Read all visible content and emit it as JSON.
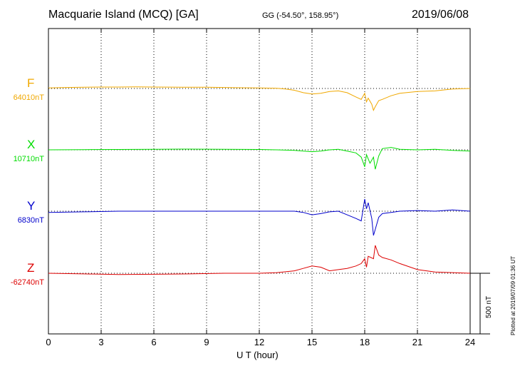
{
  "header": {
    "title": "Macquarie Island (MCQ)  [GA]",
    "coords": "GG (-54.50°, 158.95°)",
    "date": "2019/06/08"
  },
  "footer": {
    "plotted": "Plotted at 2019/07/09 01:36 UT"
  },
  "colors": {
    "F": "#f0a800",
    "X": "#00dd00",
    "Y": "#0000cc",
    "Z": "#dd0000"
  },
  "chart_data": {
    "type": "line",
    "xlabel": "U T (hour)",
    "xlim": [
      0,
      24
    ],
    "xticks": [
      "0",
      "3",
      "6",
      "9",
      "12",
      "15",
      "18",
      "21",
      "24"
    ],
    "scale_bar": "500 nT",
    "series": [
      {
        "name": "F",
        "baseline": "64010nT",
        "x": [
          0,
          1,
          2,
          3,
          4,
          5,
          6,
          7,
          8,
          9,
          10,
          11,
          12,
          13,
          13.5,
          14,
          14.5,
          15,
          15.5,
          16,
          16.5,
          17,
          17.5,
          17.8,
          18,
          18.1,
          18.2,
          18.4,
          18.5,
          18.6,
          18.8,
          19,
          19.5,
          20,
          21,
          22,
          23,
          24
        ],
        "values": [
          5,
          8,
          10,
          12,
          12,
          13,
          12,
          11,
          10,
          10,
          8,
          6,
          5,
          2,
          -5,
          -15,
          -35,
          -45,
          -40,
          -25,
          -20,
          -35,
          -70,
          -90,
          -40,
          -110,
          -80,
          -130,
          -180,
          -150,
          -100,
          -90,
          -60,
          -40,
          -25,
          -20,
          -5,
          0
        ]
      },
      {
        "name": "X",
        "baseline": "10710nT",
        "x": [
          0,
          2,
          4,
          6,
          8,
          10,
          12,
          13,
          14,
          14.5,
          15,
          15.5,
          16,
          16.5,
          17,
          17.5,
          17.8,
          18,
          18.1,
          18.3,
          18.5,
          18.6,
          18.8,
          19,
          19.5,
          20,
          21,
          22,
          23,
          24
        ],
        "values": [
          0,
          2,
          3,
          5,
          6,
          4,
          3,
          0,
          -5,
          -10,
          -15,
          -10,
          0,
          5,
          -10,
          -25,
          -60,
          -140,
          -40,
          -110,
          -60,
          -160,
          -50,
          10,
          20,
          5,
          0,
          5,
          -5,
          -10
        ]
      },
      {
        "name": "Y",
        "baseline": "6830nT",
        "x": [
          0,
          2,
          4,
          6,
          8,
          10,
          12,
          13,
          14,
          14.5,
          15,
          15.5,
          16,
          16.5,
          17,
          17.5,
          17.8,
          18,
          18.1,
          18.2,
          18.4,
          18.5,
          18.6,
          18.8,
          19,
          19.5,
          20,
          21,
          22,
          23,
          24
        ],
        "values": [
          -10,
          -5,
          0,
          0,
          0,
          0,
          0,
          0,
          0,
          -10,
          -30,
          -20,
          -5,
          0,
          -30,
          -60,
          -80,
          100,
          20,
          70,
          -60,
          -200,
          -150,
          -50,
          -20,
          -10,
          0,
          5,
          0,
          10,
          0
        ]
      },
      {
        "name": "Z",
        "baseline": "-62740nT",
        "x": [
          0,
          2,
          4,
          6,
          8,
          10,
          12,
          13,
          14,
          14.5,
          15,
          15.5,
          16,
          16.5,
          17,
          17.5,
          17.8,
          18,
          18.1,
          18.2,
          18.5,
          18.6,
          18.8,
          19,
          19.5,
          20,
          21,
          22,
          23,
          24
        ],
        "values": [
          0,
          -5,
          -10,
          -8,
          -5,
          0,
          0,
          5,
          20,
          40,
          60,
          50,
          20,
          30,
          40,
          60,
          80,
          120,
          50,
          140,
          120,
          230,
          150,
          130,
          110,
          80,
          30,
          10,
          5,
          0
        ]
      }
    ]
  }
}
